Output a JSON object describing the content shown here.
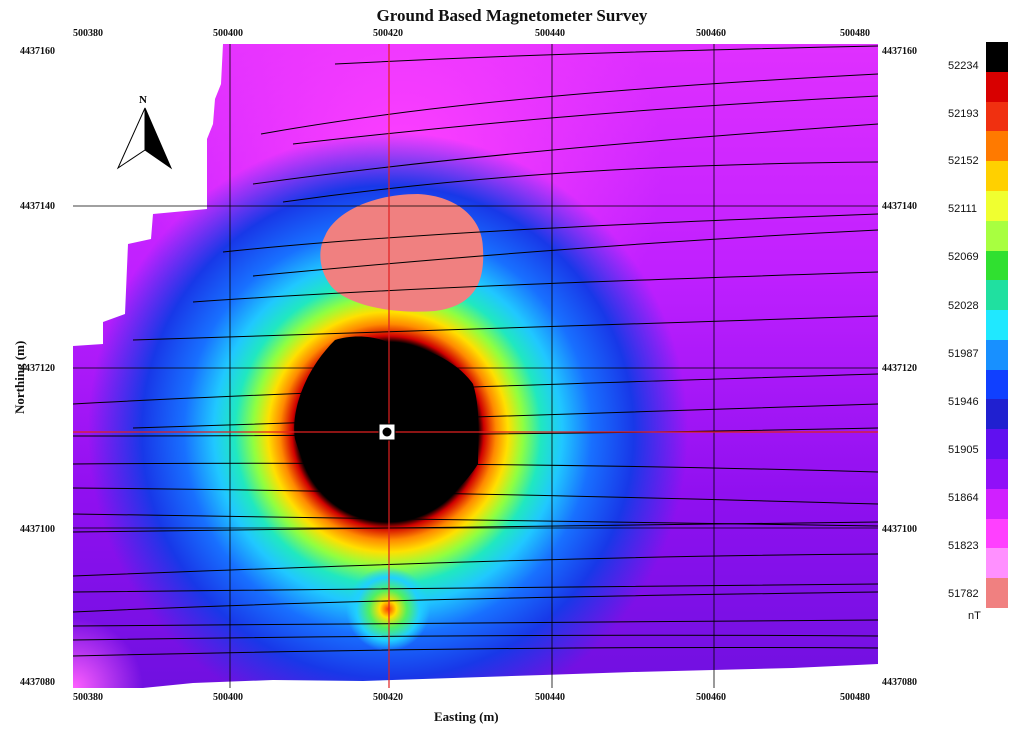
{
  "title": "Ground Based Magnetometer Survey",
  "x_axis": {
    "label": "Easting (m)",
    "ticks": [
      "500380",
      "500400",
      "500420",
      "500440",
      "500460",
      "500480"
    ]
  },
  "y_axis": {
    "label": "Northing (m)",
    "ticks": [
      "4437160",
      "4437140",
      "4437120",
      "4437100",
      "4437080"
    ]
  },
  "north_arrow_label": "N",
  "legend": {
    "unit": "nT",
    "values": [
      "52234",
      "52193",
      "52152",
      "52111",
      "52069",
      "52028",
      "51987",
      "51946",
      "51905",
      "51864",
      "51823",
      "51782"
    ],
    "colors": [
      "#000000",
      "#d80000",
      "#f03010",
      "#ff7a00",
      "#ffd000",
      "#f0ff30",
      "#a8ff40",
      "#30e030",
      "#20e0a0",
      "#20e8ff",
      "#1890ff",
      "#1040ff",
      "#2020d0",
      "#6010f0",
      "#9010f8",
      "#d020ff",
      "#ff40ff",
      "#ff90ff",
      "#f08080"
    ]
  },
  "colors": {
    "background": "#b010ff",
    "anomaly_core": "#000000",
    "survey_line": "#000000",
    "grid_line": "#000000",
    "crosshair": "#e02020",
    "salmon_patch": "#f08080"
  }
}
